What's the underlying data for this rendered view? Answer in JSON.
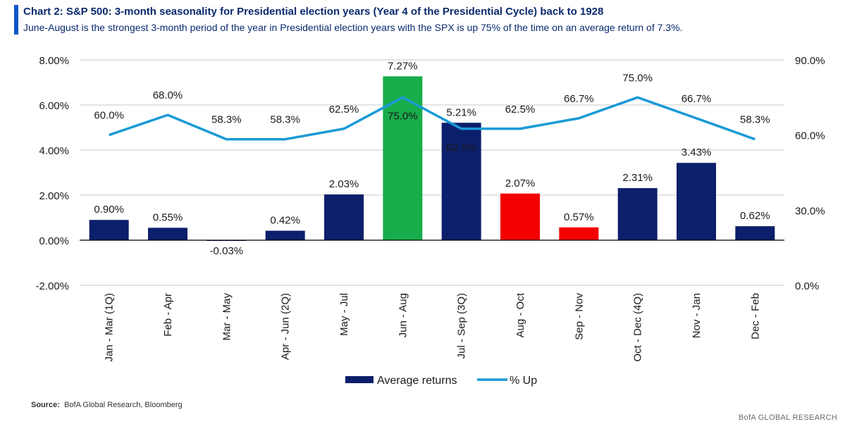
{
  "header": {
    "title": "Chart 2: S&P 500: 3-month seasonality for Presidential election years (Year 4 of the Presidential Cycle) back to 1928",
    "subtitle": "June-August is the strongest 3-month period of the year in Presidential election years with the SPX is up 75% of the time on an average return of 7.3%."
  },
  "footer": {
    "source_label": "Source:",
    "source_text": "BofA Global Research, Bloomberg",
    "brand": "BofA GLOBAL RESEARCH"
  },
  "colors": {
    "bar_default": "#0c1f6b",
    "bar_highlight_green": "#18ad4b",
    "bar_highlight_red": "#f40000",
    "line": "#1a9ad6",
    "axis": "#000000",
    "grid": "#c8c8c8"
  },
  "chart_data": {
    "type": "bar",
    "categories": [
      "Jan - Mar (1Q)",
      "Feb - Apr",
      "Mar - May",
      "Apr - Jun (2Q)",
      "May - Jul",
      "Jun - Aug",
      "Jul - Sep (3Q)",
      "Aug - Oct",
      "Sep - Nov",
      "Oct - Dec (4Q)",
      "Nov - Jan",
      "Dec - Feb"
    ],
    "series": [
      {
        "name": "Average returns",
        "type": "bar",
        "axis": "left",
        "values": [
          0.9,
          0.55,
          -0.03,
          0.42,
          2.03,
          7.27,
          5.21,
          2.07,
          0.57,
          2.31,
          3.43,
          0.62
        ],
        "labels": [
          "0.90%",
          "0.55%",
          "-0.03%",
          "0.42%",
          "2.03%",
          "7.27%",
          "5.21%",
          "2.07%",
          "0.57%",
          "2.31%",
          "3.43%",
          "0.62%"
        ],
        "bar_colors": [
          "#0c1f6b",
          "#0c1f6b",
          "#0c1f6b",
          "#0c1f6b",
          "#0c1f6b",
          "#18ad4b",
          "#0c1f6b",
          "#f40000",
          "#f40000",
          "#0c1f6b",
          "#0c1f6b",
          "#0c1f6b"
        ]
      },
      {
        "name": "% Up",
        "type": "line",
        "axis": "right",
        "values": [
          60.0,
          68.0,
          58.3,
          58.3,
          62.5,
          75.0,
          62.5,
          62.5,
          66.7,
          75.0,
          66.7,
          58.3
        ],
        "labels": [
          "60.0%",
          "68.0%",
          "58.3%",
          "58.3%",
          "62.5%",
          "75.0%",
          "62.5%",
          "62.5%",
          "66.7%",
          "75.0%",
          "66.7%",
          "58.3%"
        ]
      }
    ],
    "y_left": {
      "lim": [
        -2,
        8
      ],
      "ticks": [
        -2,
        0,
        2,
        4,
        6,
        8
      ],
      "tick_labels": [
        "-2.00%",
        "0.00%",
        "2.00%",
        "4.00%",
        "6.00%",
        "8.00%"
      ]
    },
    "y_right": {
      "lim": [
        0,
        90
      ],
      "ticks": [
        0,
        30,
        60,
        90
      ],
      "tick_labels": [
        "0.0%",
        "30.0%",
        "60.0%",
        "90.0%"
      ]
    },
    "grid": true,
    "legend": {
      "placement": "bottom-center",
      "items": [
        "Average returns",
        "% Up"
      ]
    }
  }
}
